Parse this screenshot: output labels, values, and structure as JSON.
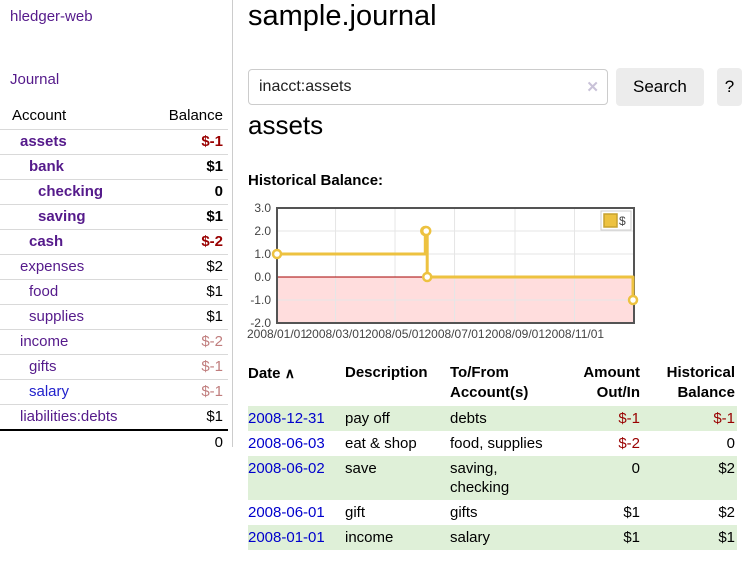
{
  "app_title": "hledger-web",
  "sidebar": {
    "journal_link": "Journal",
    "header": {
      "account": "Account",
      "balance": "Balance"
    },
    "accounts": [
      {
        "name": "assets",
        "depth": 1,
        "bold": true,
        "link": "visited",
        "balance": "$-1",
        "balance_style": "neg-strong"
      },
      {
        "name": "bank",
        "depth": 2,
        "bold": true,
        "link": "visited",
        "balance": "$1",
        "balance_style": "pos"
      },
      {
        "name": "checking",
        "depth": 3,
        "bold": true,
        "link": "visited",
        "balance": "0",
        "balance_style": "pos"
      },
      {
        "name": "saving",
        "depth": 3,
        "bold": true,
        "link": "visited",
        "balance": "$1",
        "balance_style": "pos"
      },
      {
        "name": "cash",
        "depth": 2,
        "bold": true,
        "link": "visited",
        "balance": "$-2",
        "balance_style": "neg-strong"
      },
      {
        "name": "expenses",
        "depth": 1,
        "bold": false,
        "link": "visited",
        "balance": "$2",
        "balance_style": "pos"
      },
      {
        "name": "food",
        "depth": 2,
        "bold": false,
        "link": "visited",
        "balance": "$1",
        "balance_style": "pos"
      },
      {
        "name": "supplies",
        "depth": 2,
        "bold": false,
        "link": "visited",
        "balance": "$1",
        "balance_style": "pos"
      },
      {
        "name": "income",
        "depth": 1,
        "bold": false,
        "link": "visited",
        "balance": "$-2",
        "balance_style": "neg-weak"
      },
      {
        "name": "gifts",
        "depth": 2,
        "bold": false,
        "link": "visited",
        "balance": "$-1",
        "balance_style": "neg-weak"
      },
      {
        "name": "salary",
        "depth": 2,
        "bold": false,
        "link": "unvisited",
        "balance": "$-1",
        "balance_style": "neg-weak"
      },
      {
        "name": "liabilities:debts",
        "depth": 1,
        "bold": false,
        "link": "visited",
        "balance": "$1",
        "balance_style": "pos"
      }
    ],
    "total": "0"
  },
  "header": {
    "title": "sample.journal"
  },
  "search": {
    "value": "inacct:assets",
    "clear_icon": "✕",
    "search_button": "Search",
    "help_button": "?"
  },
  "account_page": {
    "heading": "assets",
    "chart_title": "Historical Balance:"
  },
  "chart_data": {
    "type": "line",
    "title": "Historical Balance",
    "step": true,
    "x_range": [
      "2008-01-01",
      "2009-01-01"
    ],
    "ylim": [
      -2,
      3
    ],
    "y_ticks": [
      {
        "v": 3,
        "label": "3.0"
      },
      {
        "v": 2,
        "label": "2.0"
      },
      {
        "v": 1,
        "label": "1.0"
      },
      {
        "v": 0,
        "label": "0.0"
      },
      {
        "v": -1,
        "label": "-1.0"
      },
      {
        "v": -2,
        "label": "-2.0"
      }
    ],
    "x_ticks": [
      {
        "date": "2008-01-01",
        "label": "2008/01/01"
      },
      {
        "date": "2008-03-01",
        "label": "2008/03/01"
      },
      {
        "date": "2008-05-01",
        "label": "2008/05/01"
      },
      {
        "date": "2008-07-01",
        "label": "2008/07/01"
      },
      {
        "date": "2008-09-01",
        "label": "2008/09/01"
      },
      {
        "date": "2008-11-01",
        "label": "2008/11/01"
      }
    ],
    "series": [
      {
        "name": "$",
        "color": "#edc240",
        "points": [
          {
            "date": "2008-01-01",
            "v": 1
          },
          {
            "date": "2008-06-01",
            "v": 2
          },
          {
            "date": "2008-06-02",
            "v": 2
          },
          {
            "date": "2008-06-03",
            "v": 0
          },
          {
            "date": "2008-12-31",
            "v": -1
          }
        ]
      }
    ],
    "negative_fill": "#ffdddd",
    "zero_line_color": "#a60000",
    "grid_color": "#e6e6e6",
    "border_color": "#545454",
    "tick_label_color": "#444444",
    "legend_label": "$",
    "legend_position": "top-right"
  },
  "register": {
    "sort_indicator": "∧",
    "columns": [
      "Date",
      "Description",
      "To/From Account(s)",
      "Amount Out/In",
      "Historical Balance"
    ],
    "rows": [
      {
        "date": "2008-12-31",
        "description": "pay off",
        "accounts": "debts",
        "amount": "$-1",
        "amount_neg": true,
        "balance": "$-1",
        "balance_neg": true
      },
      {
        "date": "2008-06-03",
        "description": "eat & shop",
        "accounts": "food, supplies",
        "amount": "$-2",
        "amount_neg": true,
        "balance": "0",
        "balance_neg": false
      },
      {
        "date": "2008-06-02",
        "description": "save",
        "accounts": "saving, checking",
        "amount": "0",
        "amount_neg": false,
        "balance": "$2",
        "balance_neg": false
      },
      {
        "date": "2008-06-01",
        "description": "gift",
        "accounts": "gifts",
        "amount": "$1",
        "amount_neg": false,
        "balance": "$2",
        "balance_neg": false
      },
      {
        "date": "2008-01-01",
        "description": "income",
        "accounts": "salary",
        "amount": "$1",
        "amount_neg": false,
        "balance": "$1",
        "balance_neg": false
      }
    ]
  }
}
